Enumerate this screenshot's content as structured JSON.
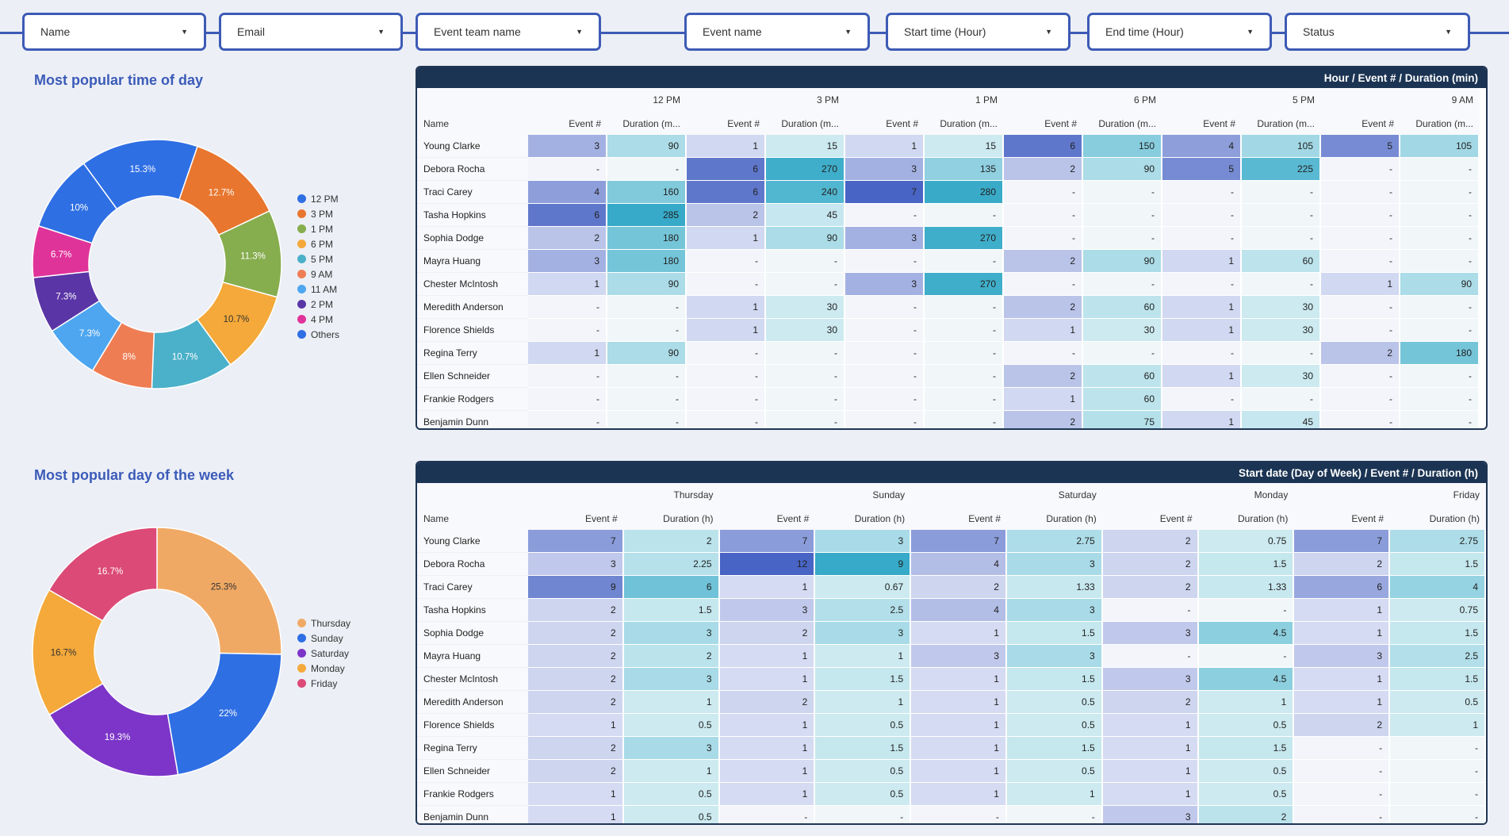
{
  "filters": [
    "Name",
    "Email",
    "Event team name",
    "Event name",
    "Start time (Hour)",
    "End time (Hour)",
    "Status"
  ],
  "time_section": {
    "title": "Most popular time of day",
    "chart_data": {
      "type": "pie",
      "title": "Most popular time of day",
      "labels": [
        "12 PM",
        "3 PM",
        "1 PM",
        "6 PM",
        "5 PM",
        "9 AM",
        "11 AM",
        "2 PM",
        "4 PM",
        "Others"
      ],
      "values": [
        15.3,
        12.7,
        11.3,
        10.7,
        10.7,
        8,
        7.3,
        7.3,
        6.7,
        10
      ],
      "value_labels": [
        "15.3%",
        "12.7%",
        "11.3%",
        "10.7%",
        "10.7%",
        "8%",
        "7.3%",
        "7.3%",
        "6.7%",
        "10%"
      ],
      "colors": [
        "#2f6fe4",
        "#e8762e",
        "#86ad4e",
        "#f4a93a",
        "#4bb0c9",
        "#ef7d54",
        "#4ea6f0",
        "#5a35a6",
        "#e0339a",
        "#2f6fe4"
      ],
      "legend_position": "right"
    }
  },
  "hour_table": {
    "title": "Hour / Event # / Duration (min)",
    "row_header": "Name",
    "metrics": [
      "Event #",
      "Duration (m..."
    ],
    "groups": [
      "12 PM",
      "3 PM",
      "1 PM",
      "6 PM",
      "5 PM",
      "9 AM"
    ],
    "rows": [
      {
        "name": "Young Clarke",
        "values": [
          "3",
          "90",
          "1",
          "15",
          "1",
          "15",
          "6",
          "150",
          "4",
          "105",
          "5",
          "105"
        ]
      },
      {
        "name": "Debora Rocha",
        "values": [
          "-",
          "-",
          "6",
          "270",
          "3",
          "135",
          "2",
          "90",
          "5",
          "225",
          "-",
          "-"
        ]
      },
      {
        "name": "Traci Carey",
        "values": [
          "4",
          "160",
          "6",
          "240",
          "7",
          "280",
          "-",
          "-",
          "-",
          "-",
          "-",
          "-"
        ]
      },
      {
        "name": "Tasha Hopkins",
        "values": [
          "6",
          "285",
          "2",
          "45",
          "-",
          "-",
          "-",
          "-",
          "-",
          "-",
          "-",
          "-"
        ]
      },
      {
        "name": "Sophia Dodge",
        "values": [
          "2",
          "180",
          "1",
          "90",
          "3",
          "270",
          "-",
          "-",
          "-",
          "-",
          "-",
          "-"
        ]
      },
      {
        "name": "Mayra Huang",
        "values": [
          "3",
          "180",
          "-",
          "-",
          "-",
          "-",
          "2",
          "90",
          "1",
          "60",
          "-",
          "-"
        ]
      },
      {
        "name": "Chester McIntosh",
        "values": [
          "1",
          "90",
          "-",
          "-",
          "3",
          "270",
          "-",
          "-",
          "-",
          "-",
          "1",
          "90"
        ]
      },
      {
        "name": "Meredith Anderson",
        "values": [
          "-",
          "-",
          "1",
          "30",
          "-",
          "-",
          "2",
          "60",
          "1",
          "30",
          "-",
          "-"
        ]
      },
      {
        "name": "Florence Shields",
        "values": [
          "-",
          "-",
          "1",
          "30",
          "-",
          "-",
          "1",
          "30",
          "1",
          "30",
          "-",
          "-"
        ]
      },
      {
        "name": "Regina Terry",
        "values": [
          "1",
          "90",
          "-",
          "-",
          "-",
          "-",
          "-",
          "-",
          "-",
          "-",
          "2",
          "180"
        ]
      },
      {
        "name": "Ellen Schneider",
        "values": [
          "-",
          "-",
          "-",
          "-",
          "-",
          "-",
          "2",
          "60",
          "1",
          "30",
          "-",
          "-"
        ]
      },
      {
        "name": "Frankie Rodgers",
        "values": [
          "-",
          "-",
          "-",
          "-",
          "-",
          "-",
          "1",
          "60",
          "-",
          "-",
          "-",
          "-"
        ]
      },
      {
        "name": "Benjamin Dunn",
        "values": [
          "-",
          "-",
          "-",
          "-",
          "-",
          "-",
          "2",
          "75",
          "1",
          "45",
          "-",
          "-"
        ]
      }
    ]
  },
  "day_section": {
    "title": "Most popular day of the week",
    "chart_data": {
      "type": "pie",
      "title": "Most popular day of the week",
      "labels": [
        "Thursday",
        "Sunday",
        "Saturday",
        "Monday",
        "Friday"
      ],
      "values": [
        25.3,
        22,
        19.3,
        16.7,
        16.7
      ],
      "value_labels": [
        "25.3%",
        "22%",
        "19.3%",
        "16.7%",
        "16.7%"
      ],
      "colors": [
        "#f0a964",
        "#2f6fe4",
        "#7c35c8",
        "#f4a93a",
        "#dc4a77"
      ],
      "legend_position": "right"
    }
  },
  "day_table": {
    "title": "Start date (Day of Week) / Event # / Duration (h)",
    "row_header": "Name",
    "metrics": [
      "Event #",
      "Duration (h)"
    ],
    "groups": [
      "Thursday",
      "Sunday",
      "Saturday",
      "Monday",
      "Friday"
    ],
    "rows": [
      {
        "name": "Young Clarke",
        "values": [
          "7",
          "2",
          "7",
          "3",
          "7",
          "2.75",
          "2",
          "0.75",
          "7",
          "2.75"
        ]
      },
      {
        "name": "Debora Rocha",
        "values": [
          "3",
          "2.25",
          "12",
          "9",
          "4",
          "3",
          "2",
          "1.5",
          "2",
          "1.5"
        ]
      },
      {
        "name": "Traci Carey",
        "values": [
          "9",
          "6",
          "1",
          "0.67",
          "2",
          "1.33",
          "2",
          "1.33",
          "6",
          "4"
        ]
      },
      {
        "name": "Tasha Hopkins",
        "values": [
          "2",
          "1.5",
          "3",
          "2.5",
          "4",
          "3",
          "-",
          "-",
          "1",
          "0.75"
        ]
      },
      {
        "name": "Sophia Dodge",
        "values": [
          "2",
          "3",
          "2",
          "3",
          "1",
          "1.5",
          "3",
          "4.5",
          "1",
          "1.5"
        ]
      },
      {
        "name": "Mayra Huang",
        "values": [
          "2",
          "2",
          "1",
          "1",
          "3",
          "3",
          "-",
          "-",
          "3",
          "2.5"
        ]
      },
      {
        "name": "Chester McIntosh",
        "values": [
          "2",
          "3",
          "1",
          "1.5",
          "1",
          "1.5",
          "3",
          "4.5",
          "1",
          "1.5"
        ]
      },
      {
        "name": "Meredith Anderson",
        "values": [
          "2",
          "1",
          "2",
          "1",
          "1",
          "0.5",
          "2",
          "1",
          "1",
          "0.5"
        ]
      },
      {
        "name": "Florence Shields",
        "values": [
          "1",
          "0.5",
          "1",
          "0.5",
          "1",
          "0.5",
          "1",
          "0.5",
          "2",
          "1"
        ]
      },
      {
        "name": "Regina Terry",
        "values": [
          "2",
          "3",
          "1",
          "1.5",
          "1",
          "1.5",
          "1",
          "1.5",
          "-",
          "-"
        ]
      },
      {
        "name": "Ellen Schneider",
        "values": [
          "2",
          "1",
          "1",
          "0.5",
          "1",
          "0.5",
          "1",
          "0.5",
          "-",
          "-"
        ]
      },
      {
        "name": "Frankie Rodgers",
        "values": [
          "1",
          "0.5",
          "1",
          "0.5",
          "1",
          "1",
          "1",
          "0.5",
          "-",
          "-"
        ]
      },
      {
        "name": "Benjamin Dunn",
        "values": [
          "1",
          "0.5",
          "-",
          "-",
          "-",
          "-",
          "3",
          "2",
          "-",
          "-"
        ]
      }
    ]
  }
}
